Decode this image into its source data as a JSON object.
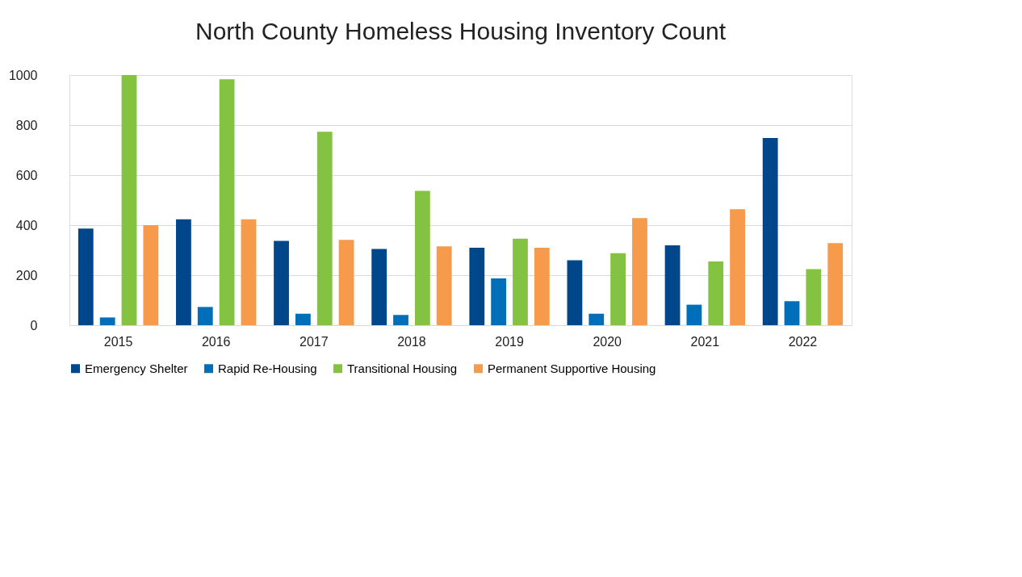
{
  "chart_data": {
    "type": "bar",
    "title": "North County Homeless Housing Inventory Count",
    "categories": [
      "2015",
      "2016",
      "2017",
      "2018",
      "2019",
      "2020",
      "2021",
      "2022"
    ],
    "series": [
      {
        "name": "Emergency Shelter",
        "color": "#00468b",
        "values": [
          386,
          423,
          337,
          305,
          310,
          260,
          319,
          748
        ]
      },
      {
        "name": "Rapid Re-Housing",
        "color": "#006eb8",
        "values": [
          31,
          73,
          46,
          41,
          187,
          46,
          82,
          96
        ]
      },
      {
        "name": "Transitional Housing",
        "color": "#84c341",
        "values": [
          1000,
          983,
          773,
          537,
          346,
          288,
          255,
          224
        ]
      },
      {
        "name": "Permanent Supportive Housing",
        "color": "#f69a4c",
        "values": [
          400,
          423,
          341,
          315,
          310,
          428,
          464,
          328
        ]
      }
    ],
    "ylim": [
      0,
      1000
    ],
    "yticks": [
      0,
      200,
      400,
      600,
      800,
      1000
    ],
    "grid": "y",
    "legend": "bottom"
  }
}
